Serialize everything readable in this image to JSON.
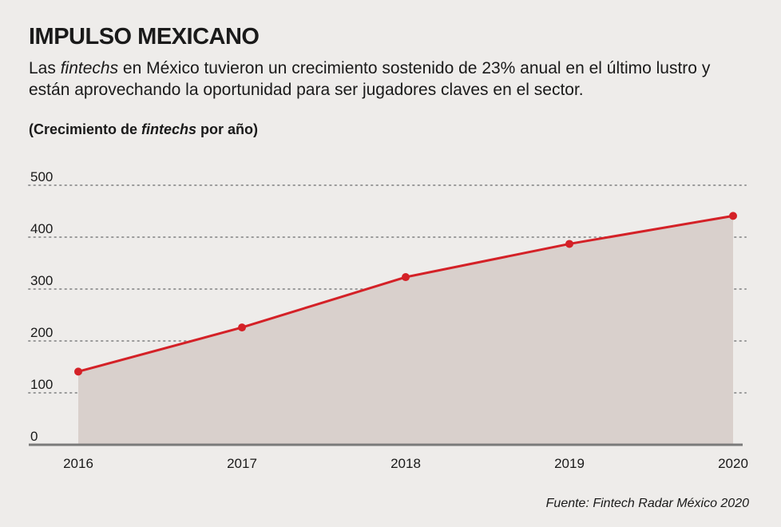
{
  "header": {
    "title": "IMPULSO MEXICANO",
    "subtitle_part1": "Las ",
    "subtitle_italic": "fintechs",
    "subtitle_part2": " en México tuvieron un crecimiento sostenido de 23% anual en el último lustro y están aprovechando la oportunidad para ser jugadores claves en el sector.",
    "units_part1": "(Crecimiento de ",
    "units_italic": "fintechs",
    "units_part2": " por año)"
  },
  "footer": {
    "source": "Fuente: Fintech Radar México 2020"
  },
  "colors": {
    "line": "#d42127",
    "area": "#d9d0cc",
    "grid": "#9a9a9a",
    "axis": "#7a7a7a",
    "background": "#eeecea"
  },
  "chart_data": {
    "type": "area",
    "categories": [
      "2016",
      "2017",
      "2018",
      "2019",
      "2020"
    ],
    "values": [
      141,
      226,
      323,
      387,
      441
    ],
    "ylim": [
      0,
      500
    ],
    "yticks": [
      "0",
      "100",
      "200",
      "300",
      "400",
      "500"
    ],
    "grid": true,
    "legend": "none"
  }
}
